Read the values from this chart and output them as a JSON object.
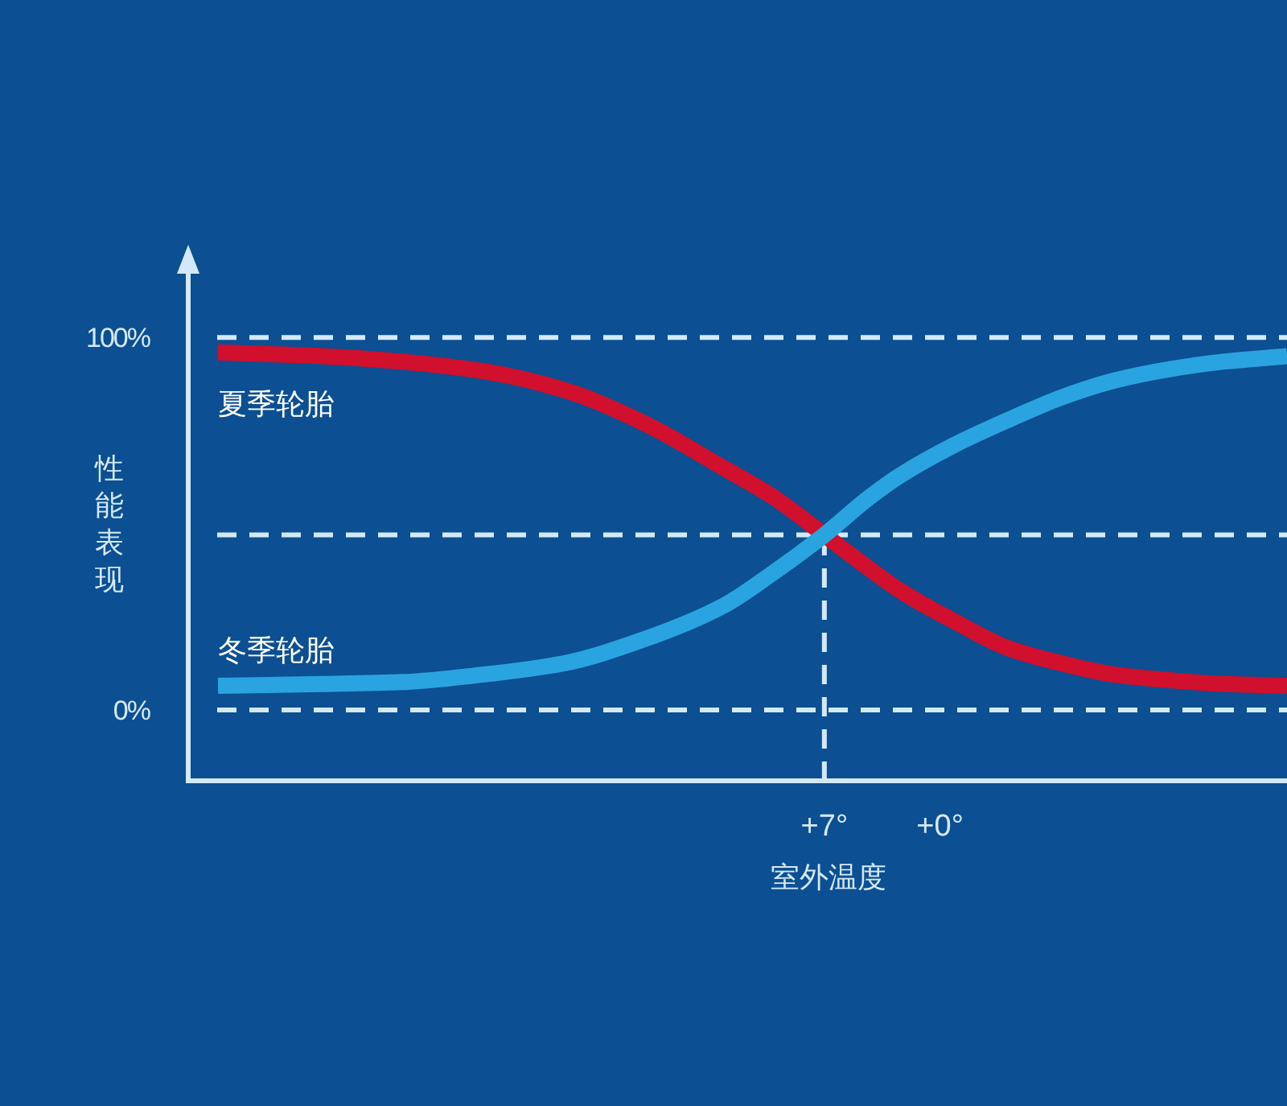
{
  "chart_data": {
    "type": "line",
    "xlabel": "室外温度",
    "ylabel": "性能表现",
    "x": [
      43.7,
      37.4,
      32.5,
      27.7,
      22.8,
      17.9,
      13.1,
      10.2,
      7,
      4.3,
      2.4,
      -0.8,
      -4.2,
      -7.4,
      -10.6,
      -13.9,
      -17.1,
      -21
    ],
    "xlim": [
      45.5,
      -21
    ],
    "xticks": [
      {
        "value": 7,
        "label": "+7°"
      },
      {
        "value": 0,
        "label": "+0°"
      }
    ],
    "ylim": [
      -19,
      118
    ],
    "yticks": [
      {
        "value": 0,
        "label": "0%"
      },
      {
        "value": 100,
        "label": "100%"
      }
    ],
    "grid": "y",
    "series": [
      {
        "name": "夏季轮胎",
        "color": "#d0102c",
        "values": [
          96,
          95,
          93.5,
          91,
          86,
          77,
          65,
          57.5,
          47,
          38,
          32,
          24,
          16.5,
          12.5,
          9.5,
          8,
          7,
          6.5
        ]
      },
      {
        "name": "冬季轮胎",
        "color": "#2aa4e0",
        "values": [
          6.5,
          7,
          7.5,
          9.5,
          12.5,
          19,
          28,
          36.5,
          47,
          57,
          63,
          71,
          78,
          84,
          88.5,
          91.5,
          93.5,
          95
        ]
      }
    ],
    "ref_lines": [
      {
        "axis": "y",
        "value": 47,
        "line_style": "dashed"
      },
      {
        "axis": "x",
        "value": 7,
        "line_style": "dashed"
      }
    ]
  }
}
